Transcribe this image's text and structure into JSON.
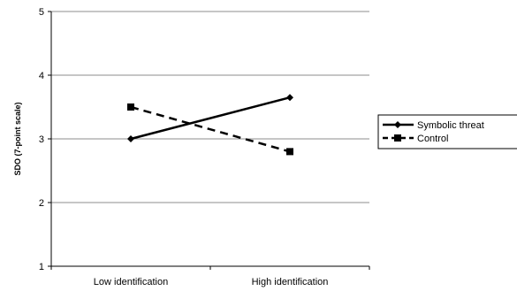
{
  "chart_data": {
    "type": "line",
    "categories": [
      "Low identification",
      "High identification"
    ],
    "series": [
      {
        "name": "Symbolic threat",
        "values": [
          3.0,
          3.65
        ],
        "style": "solid",
        "marker": "diamond",
        "color": "#000000"
      },
      {
        "name": "Control",
        "values": [
          3.5,
          2.8
        ],
        "style": "dashed",
        "marker": "square",
        "color": "#000000"
      }
    ],
    "ylabel": "SDO (7-point scale)",
    "xlabel": "",
    "ylim": [
      1,
      5
    ],
    "yticks": [
      1,
      2,
      3,
      4,
      5
    ],
    "grid": true,
    "legend": "right"
  }
}
